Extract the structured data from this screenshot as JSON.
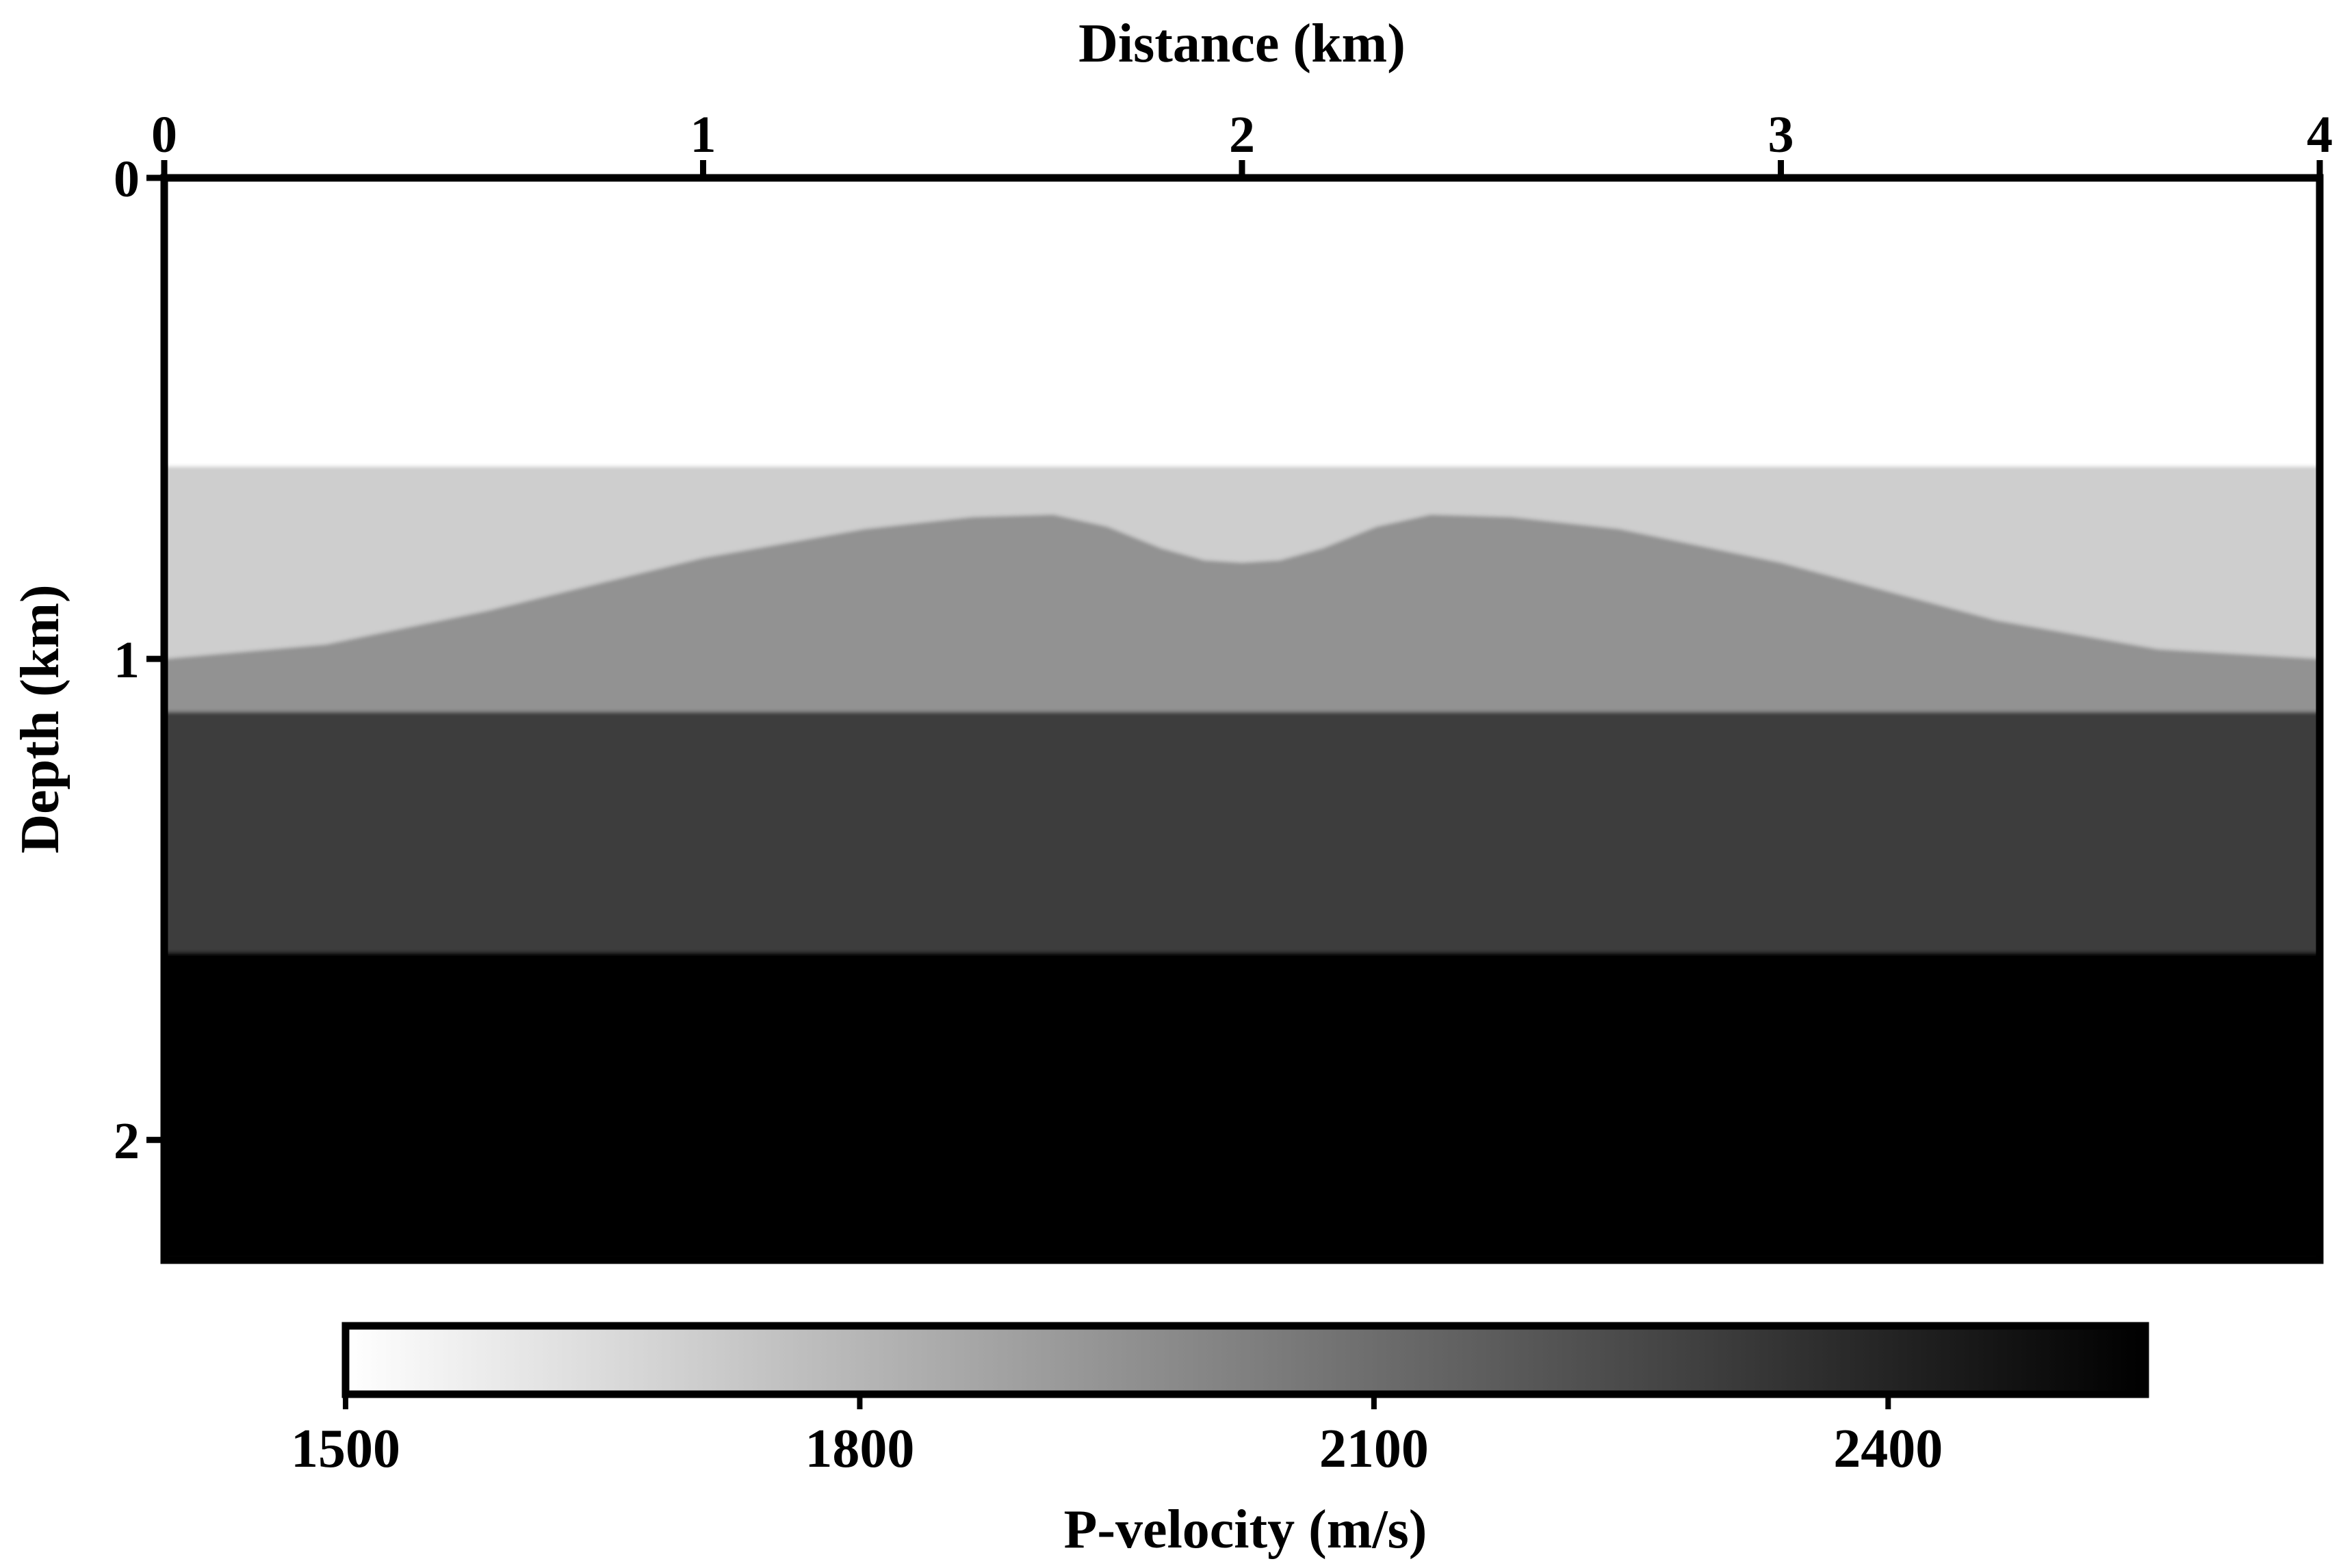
{
  "chart_data": {
    "type": "heatmap",
    "title": "",
    "xlabel": "Distance (km)",
    "ylabel": "Depth (km)",
    "xlim": [
      0,
      4
    ],
    "ylim": [
      0,
      2.25
    ],
    "x_axis_position": "top",
    "y_inverted": true,
    "x_ticks": [
      0,
      1,
      2,
      3,
      4
    ],
    "y_ticks": [
      0,
      1,
      2
    ],
    "colormap": "gray_r",
    "grid": false,
    "layers": [
      {
        "name": "layer-1",
        "velocity": 1500,
        "top": "0",
        "bottom": "interface-1"
      },
      {
        "name": "layer-2",
        "velocity": 1700,
        "top": "interface-1",
        "bottom": "interface-2"
      },
      {
        "name": "layer-3",
        "velocity": 1950,
        "top": "interface-2",
        "bottom": "interface-3"
      },
      {
        "name": "layer-4",
        "velocity": 2300,
        "top": "interface-3",
        "bottom": "interface-4"
      },
      {
        "name": "layer-5",
        "velocity": 2600,
        "top": "interface-4",
        "bottom": "2.25"
      }
    ],
    "interfaces": [
      {
        "name": "interface-1",
        "x": [
          0,
          4
        ],
        "depth": [
          0.6,
          0.6
        ]
      },
      {
        "name": "interface-2",
        "x": [
          0,
          0.3,
          0.6,
          1.0,
          1.3,
          1.5,
          1.65,
          1.75,
          1.85,
          1.93,
          2.0,
          2.07,
          2.15,
          2.25,
          2.35,
          2.5,
          2.7,
          3.0,
          3.4,
          3.7,
          4.0
        ],
        "depth": [
          1.0,
          0.97,
          0.9,
          0.79,
          0.73,
          0.705,
          0.7,
          0.725,
          0.77,
          0.795,
          0.8,
          0.795,
          0.77,
          0.725,
          0.7,
          0.705,
          0.73,
          0.8,
          0.92,
          0.98,
          1.0
        ]
      },
      {
        "name": "interface-3",
        "x": [
          0,
          4
        ],
        "depth": [
          1.11,
          1.11
        ]
      },
      {
        "name": "interface-4",
        "x": [
          0,
          4
        ],
        "depth": [
          1.61,
          1.61
        ]
      }
    ],
    "colorbar": {
      "label": "P-velocity (m/s)",
      "vmin": 1500,
      "vmax": 2550,
      "ticks": [
        1500,
        1800,
        2100,
        2400
      ],
      "orientation": "horizontal",
      "placement": "bottom"
    }
  }
}
